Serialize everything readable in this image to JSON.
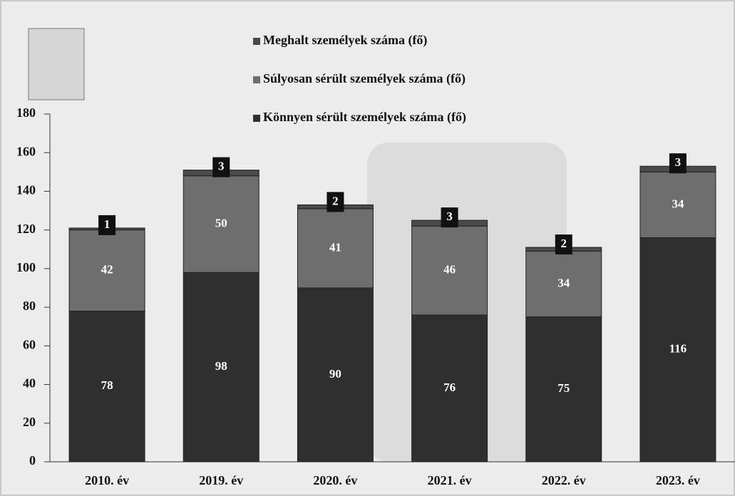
{
  "chart_data": {
    "type": "stacked-bar",
    "categories": [
      "2010. év",
      "2019. év",
      "2020. év",
      "2021. év",
      "2022. év",
      "2023. év"
    ],
    "series": [
      {
        "name": "Könnyen sérült személyek száma (fő)",
        "color": "#2f2f2f",
        "values": [
          78,
          98,
          90,
          76,
          75,
          116
        ]
      },
      {
        "name": "Súlyosan sérült személyek száma (fő)",
        "color": "#6e6e6e",
        "values": [
          42,
          50,
          41,
          46,
          34,
          34
        ]
      },
      {
        "name": "Meghalt személyek száma (fő)",
        "color": "#4a4a4a",
        "values": [
          1,
          3,
          2,
          3,
          2,
          3
        ]
      }
    ],
    "ylim": [
      0,
      180
    ],
    "yticks": [
      0,
      20,
      40,
      60,
      80,
      100,
      120,
      140,
      160,
      180
    ]
  }
}
